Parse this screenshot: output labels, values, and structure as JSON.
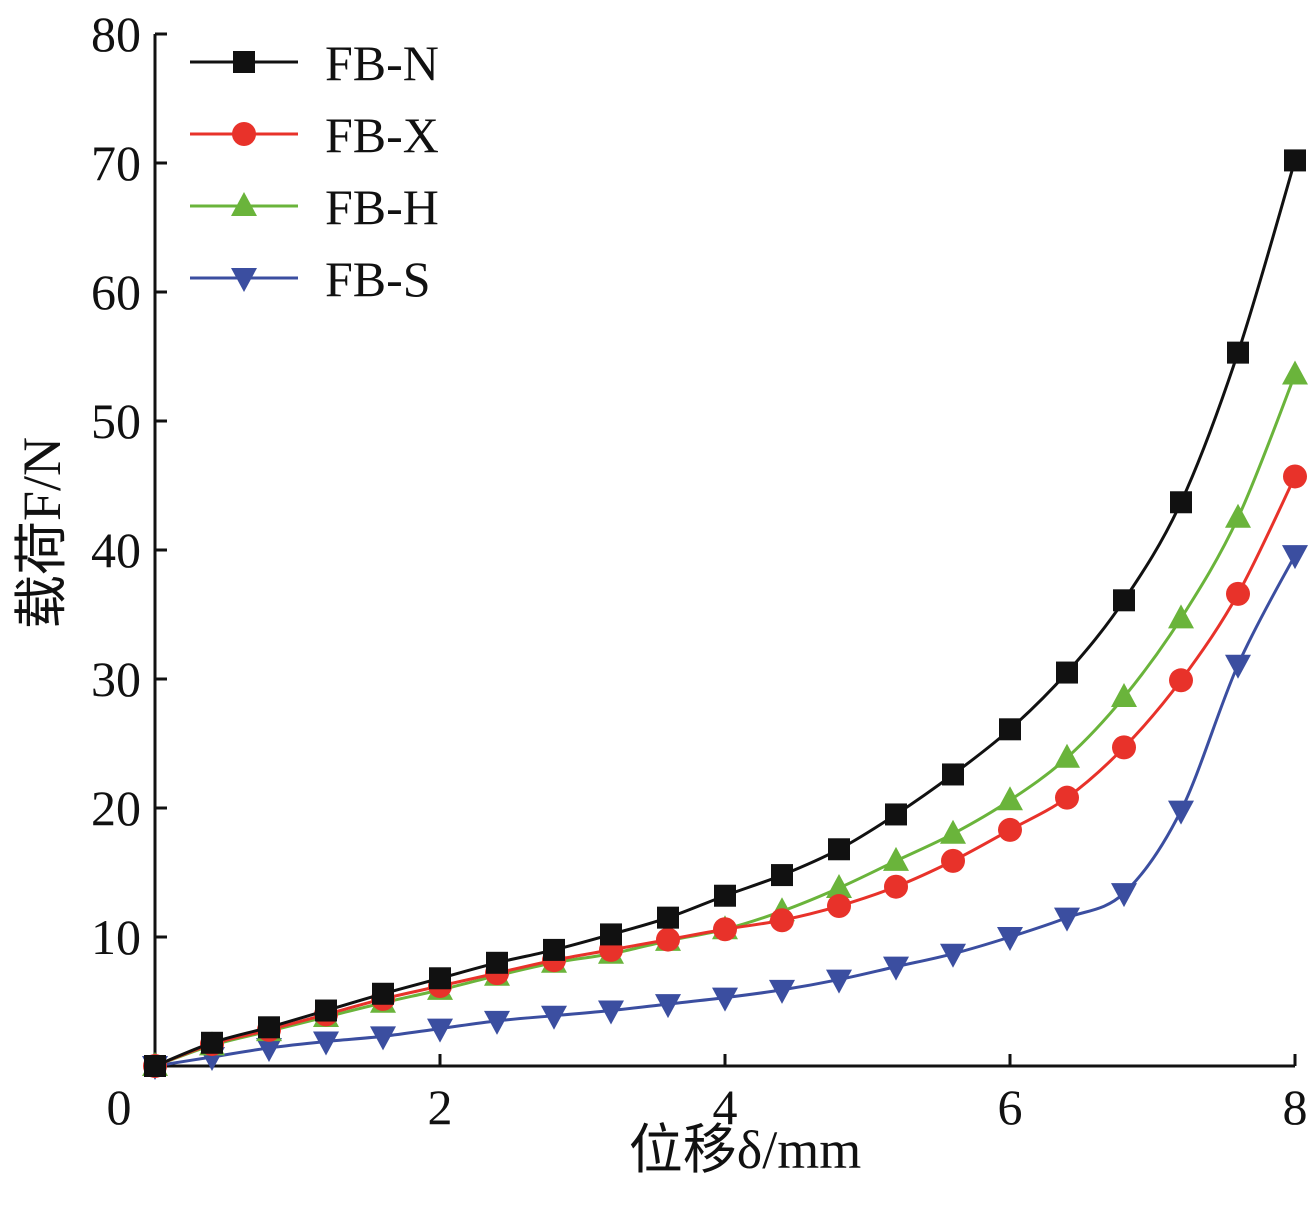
{
  "chart_data": {
    "type": "line",
    "x": [
      0.0,
      0.4,
      0.8,
      1.2,
      1.6,
      2.0,
      2.4,
      2.8,
      3.2,
      3.6,
      4.0,
      4.4,
      4.8,
      5.2,
      5.6,
      6.0,
      6.4,
      6.8,
      7.2,
      7.6,
      8.0
    ],
    "series": [
      {
        "name": "FB-N",
        "color": "#111111",
        "marker": "square",
        "values": [
          0.0,
          1.8,
          3.0,
          4.3,
          5.6,
          6.8,
          8.0,
          9.0,
          10.2,
          11.5,
          13.2,
          14.8,
          16.8,
          19.5,
          22.6,
          26.1,
          30.5,
          36.1,
          43.7,
          55.3,
          70.2
        ]
      },
      {
        "name": "FB-X",
        "color": "#e8322a",
        "marker": "circle",
        "values": [
          0.0,
          1.7,
          2.8,
          4.0,
          5.2,
          6.2,
          7.2,
          8.2,
          9.0,
          9.8,
          10.6,
          11.3,
          12.4,
          13.9,
          15.9,
          18.3,
          20.8,
          24.7,
          29.9,
          36.6,
          45.7
        ]
      },
      {
        "name": "FB-H",
        "color": "#6ab43b",
        "marker": "triangle-up",
        "values": [
          0.0,
          1.6,
          2.7,
          3.8,
          4.9,
          5.9,
          7.0,
          8.0,
          8.7,
          9.7,
          10.6,
          12.0,
          13.8,
          15.9,
          18.0,
          20.6,
          23.9,
          28.6,
          34.7,
          42.5,
          53.6
        ]
      },
      {
        "name": "FB-S",
        "color": "#3b4ea0",
        "marker": "triangle-down",
        "values": [
          0.0,
          0.7,
          1.4,
          1.9,
          2.3,
          2.9,
          3.5,
          3.9,
          4.3,
          4.8,
          5.3,
          5.9,
          6.7,
          7.7,
          8.7,
          10.0,
          11.5,
          13.4,
          19.8,
          31.1,
          39.6
        ]
      }
    ],
    "xlabel": "位移δ/mm",
    "ylabel": "载荷F/N",
    "xlim": [
      0,
      8
    ],
    "ylim": [
      0,
      80
    ],
    "xticks": [
      "0",
      "2",
      "4",
      "6",
      "8"
    ],
    "yticks": [
      "10",
      "20",
      "30",
      "40",
      "50",
      "60",
      "70",
      "80"
    ],
    "legend": "top-left",
    "grid": false
  }
}
